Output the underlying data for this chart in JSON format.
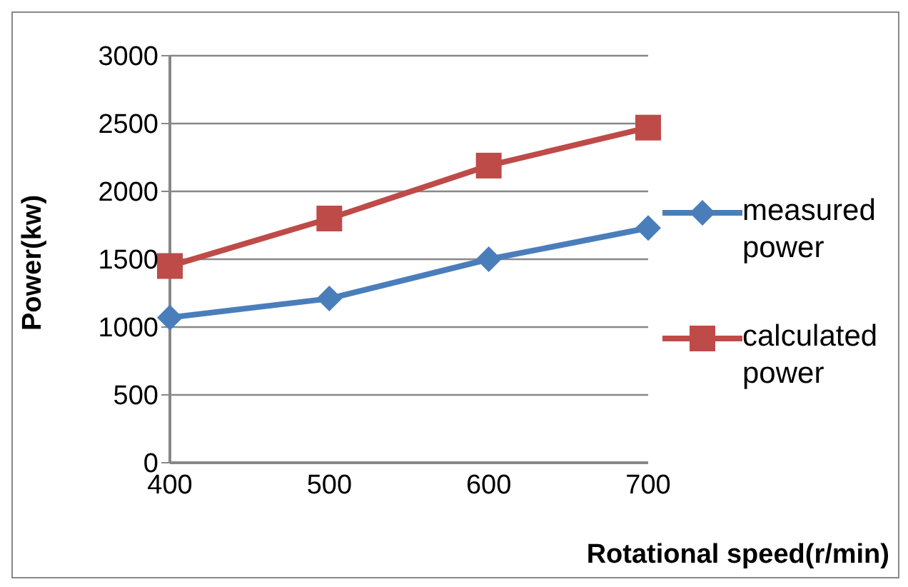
{
  "chart_data": {
    "type": "line",
    "xlabel": "Rotational speed(r/min)",
    "ylabel": "Power(kw)",
    "categories": [
      "400",
      "500",
      "600",
      "700"
    ],
    "series": [
      {
        "name": "measured power",
        "color": "#4a7ebb",
        "marker": "diamond",
        "values": [
          1070,
          1210,
          1500,
          1730
        ]
      },
      {
        "name": "calculated power",
        "color": "#be4b48",
        "marker": "square",
        "values": [
          1450,
          1800,
          2190,
          2470
        ]
      }
    ],
    "ylim": [
      0,
      3000
    ],
    "yticks": [
      0,
      500,
      1000,
      1500,
      2000,
      2500,
      3000
    ],
    "grid": "y",
    "legend": "right",
    "line_style": "solid"
  }
}
